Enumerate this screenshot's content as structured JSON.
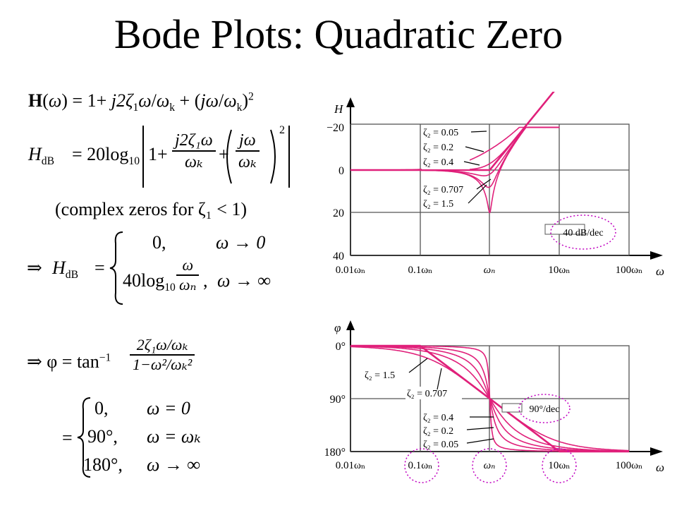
{
  "title": "Bode Plots: Quadratic Zero",
  "equations": {
    "H_omega": "H(ω) = 1 + j2ζ₁ω/ωₖ + (jω/ωₖ)²",
    "H_dB_label": "H",
    "H_dB_sub": "dB",
    "H_dB_lead": "= 20log",
    "log_sub": "10",
    "frac_num_1": "j2ζ₁ω",
    "frac_den_1": "ωₖ",
    "frac_num_2": "jω",
    "frac_den_2": "ωₖ",
    "complex_note": "(complex zeros for  ζ₁ < 1)",
    "case_top_value": "0,",
    "case_top_cond": "ω → 0",
    "case_bot_lead": "40log",
    "case_bot_num": "ω",
    "case_bot_den": "ωₙ",
    "case_bot_cond": "ω → ∞",
    "phi_lead": "⇒ φ = tan",
    "phi_exp": "−1",
    "phi_num": "2ζ₁ω/ωₖ",
    "phi_den": "1−ω²/ωₖ²",
    "phase_case_1": "0,",
    "phase_cond_1": "ω = 0",
    "phase_case_2": "90°,",
    "phase_cond_2": "ω = ωₖ",
    "phase_case_3": "180°,",
    "phase_cond_3": "ω → ∞"
  },
  "magnitude_plot": {
    "y_axis_symbol": "H",
    "x_axis_symbol": "ω",
    "y_ticks": [
      "−20",
      "0",
      "20",
      "40"
    ],
    "x_ticks": [
      "0.01ωₙ",
      "0.1ωₙ",
      "ωₙ",
      "10ωₙ",
      "100ωₙ"
    ],
    "curve_labels": [
      "ζ₂ = 0.05",
      "ζ₂ = 0.2",
      "ζ₂ = 0.4",
      "ζ₂ = 0.707",
      "ζ₂ = 1.5"
    ],
    "slope_label": "40 dB/dec",
    "curve_color": "#e0207a",
    "highlight_color": "#c000c0"
  },
  "phase_plot": {
    "y_axis_symbol": "φ",
    "x_axis_symbol": "ω",
    "y_ticks": [
      "0°",
      "90°",
      "180°"
    ],
    "x_ticks": [
      "0.01ωₙ",
      "0.1ωₙ",
      "ωₙ",
      "10ωₙ",
      "100ωₙ"
    ],
    "curve_labels_left": [
      "ζ₂ = 1.5",
      "ζ₂ = 0.707"
    ],
    "curve_labels_right": [
      "ζ₂ = 0.4",
      "ζ₂ = 0.2",
      "ζ₂ = 0.05"
    ],
    "slope_label": "90°/dec",
    "curve_color": "#e0207a",
    "highlight_color": "#c000c0"
  }
}
